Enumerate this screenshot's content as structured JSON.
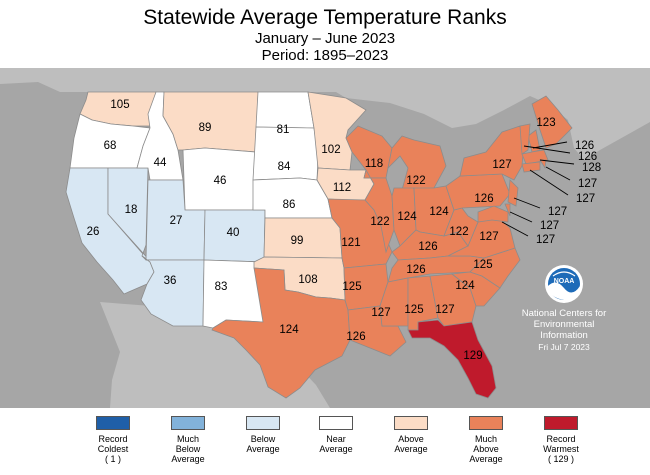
{
  "title": "Statewide Average Temperature Ranks",
  "subtitle": "January – June 2023",
  "period": "Period: 1895–2023",
  "categories": [
    {
      "key": "record-coldest",
      "label": "Record\nColdest\n( 1 )",
      "color": "#1f5fa8"
    },
    {
      "key": "much-below",
      "label": "Much\nBelow\nAverage",
      "color": "#82b2da"
    },
    {
      "key": "below",
      "label": "Below\nAverage",
      "color": "#d8e7f3"
    },
    {
      "key": "near",
      "label": "Near\nAverage",
      "color": "#ffffff"
    },
    {
      "key": "above",
      "label": "Above\nAverage",
      "color": "#fbdcc6"
    },
    {
      "key": "much-above",
      "label": "Much\nAbove\nAverage",
      "color": "#e9825a"
    },
    {
      "key": "record-warmest",
      "label": "Record\nWarmest\n( 129 )",
      "color": "#bf1a2c"
    }
  ],
  "states": [
    {
      "code": "WA",
      "rank": "105",
      "category": "above"
    },
    {
      "code": "OR",
      "rank": "68",
      "category": "near"
    },
    {
      "code": "CA",
      "rank": "26",
      "category": "below"
    },
    {
      "code": "NV",
      "rank": "18",
      "category": "below"
    },
    {
      "code": "ID",
      "rank": "44",
      "category": "near"
    },
    {
      "code": "MT",
      "rank": "89",
      "category": "above"
    },
    {
      "code": "WY",
      "rank": "46",
      "category": "near"
    },
    {
      "code": "UT",
      "rank": "27",
      "category": "below"
    },
    {
      "code": "AZ",
      "rank": "36",
      "category": "below"
    },
    {
      "code": "CO",
      "rank": "40",
      "category": "below"
    },
    {
      "code": "NM",
      "rank": "83",
      "category": "near"
    },
    {
      "code": "ND",
      "rank": "81",
      "category": "near"
    },
    {
      "code": "SD",
      "rank": "84",
      "category": "near"
    },
    {
      "code": "NE",
      "rank": "86",
      "category": "near"
    },
    {
      "code": "KS",
      "rank": "99",
      "category": "above"
    },
    {
      "code": "OK",
      "rank": "108",
      "category": "above"
    },
    {
      "code": "TX",
      "rank": "124",
      "category": "much-above"
    },
    {
      "code": "MN",
      "rank": "102",
      "category": "above"
    },
    {
      "code": "IA",
      "rank": "112",
      "category": "above"
    },
    {
      "code": "MO",
      "rank": "121",
      "category": "much-above"
    },
    {
      "code": "AR",
      "rank": "125",
      "category": "much-above"
    },
    {
      "code": "LA",
      "rank": "126",
      "category": "much-above"
    },
    {
      "code": "WI",
      "rank": "118",
      "category": "much-above"
    },
    {
      "code": "IL",
      "rank": "122",
      "category": "much-above"
    },
    {
      "code": "MI",
      "rank": "122",
      "category": "much-above"
    },
    {
      "code": "IN",
      "rank": "124",
      "category": "much-above"
    },
    {
      "code": "OH",
      "rank": "124",
      "category": "much-above"
    },
    {
      "code": "KY",
      "rank": "126",
      "category": "much-above"
    },
    {
      "code": "TN",
      "rank": "126",
      "category": "much-above"
    },
    {
      "code": "MS",
      "rank": "127",
      "category": "much-above"
    },
    {
      "code": "AL",
      "rank": "125",
      "category": "much-above"
    },
    {
      "code": "GA",
      "rank": "127",
      "category": "much-above"
    },
    {
      "code": "FL",
      "rank": "129",
      "category": "record-warmest"
    },
    {
      "code": "SC",
      "rank": "124",
      "category": "much-above"
    },
    {
      "code": "NC",
      "rank": "125",
      "category": "much-above"
    },
    {
      "code": "VA",
      "rank": "127",
      "category": "much-above"
    },
    {
      "code": "WV",
      "rank": "122",
      "category": "much-above"
    },
    {
      "code": "PA",
      "rank": "126",
      "category": "much-above"
    },
    {
      "code": "NY",
      "rank": "127",
      "category": "much-above"
    },
    {
      "code": "ME",
      "rank": "123",
      "category": "much-above"
    },
    {
      "code": "NH",
      "rank": "126",
      "category": "much-above"
    },
    {
      "code": "VT",
      "rank": "126",
      "category": "much-above"
    },
    {
      "code": "MA",
      "rank": "128",
      "category": "much-above"
    },
    {
      "code": "RI",
      "rank": "127",
      "category": "much-above"
    },
    {
      "code": "CT",
      "rank": "127",
      "category": "much-above"
    },
    {
      "code": "NJ",
      "rank": "127",
      "category": "much-above"
    },
    {
      "code": "DE",
      "rank": "127",
      "category": "much-above"
    },
    {
      "code": "MD",
      "rank": "127",
      "category": "much-above"
    }
  ],
  "agency": {
    "logo_text": "NOAA",
    "line1": "National Centers for",
    "line2": "Environmental",
    "line3": "Information",
    "date": "Fri Jul  7 2023"
  },
  "colors": {
    "ocean": "#a6a6a6",
    "foreign_land": "#bebebe",
    "state_border": "#8c8c8c"
  }
}
